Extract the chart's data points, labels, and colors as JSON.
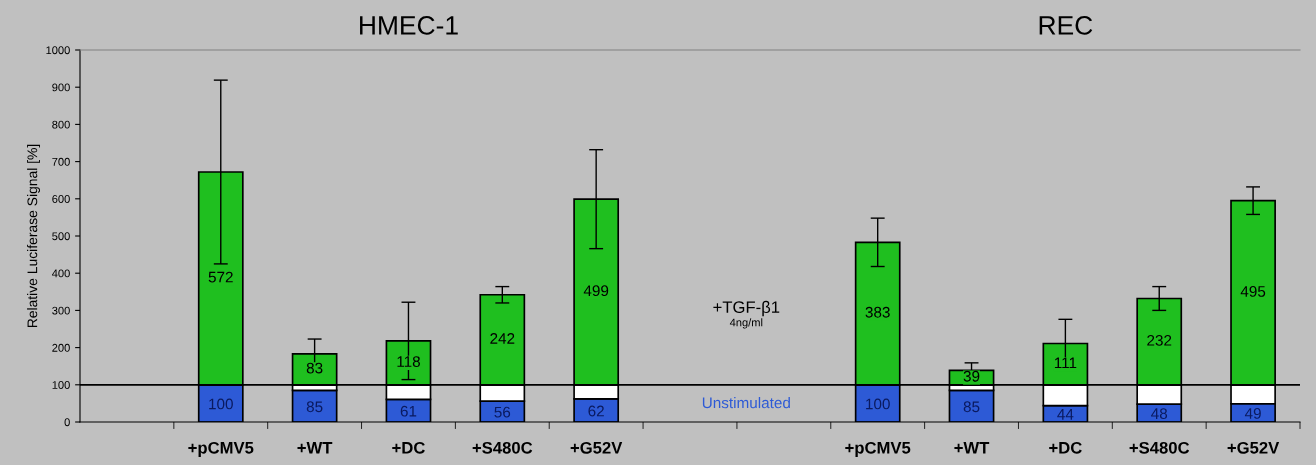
{
  "chart_data": {
    "type": "bar",
    "stacked": true,
    "ylabel": "Relative Luciferase Signal [%]",
    "categories": [
      null,
      "+pCMV5",
      "+WT",
      "+DC",
      "+S480C",
      "+G52V",
      null,
      null,
      "+pCMV5",
      "+WT",
      "+DC",
      "+S480C",
      "+G52V"
    ],
    "series": [
      {
        "name": "Unstimulated",
        "color": "#2d5ad6",
        "values": [
          null,
          100,
          85,
          61,
          56,
          62,
          null,
          null,
          100,
          85,
          44,
          48,
          49
        ],
        "value_labels": [
          null,
          "100",
          "85",
          "61",
          "56",
          "62",
          null,
          null,
          "100",
          "85",
          "44",
          "48",
          "49"
        ]
      },
      {
        "color": "#ffffff",
        "values": [
          null,
          0,
          15,
          39,
          44,
          38,
          null,
          null,
          0,
          15,
          56,
          52,
          51
        ]
      },
      {
        "color": "#1fbf1f",
        "values": [
          null,
          572,
          83,
          118,
          242,
          499,
          null,
          null,
          383,
          39,
          111,
          232,
          495
        ],
        "value_labels": [
          null,
          "572",
          "83",
          "118",
          "242",
          "499",
          null,
          null,
          "383",
          "39",
          "111",
          "232",
          "495"
        ],
        "errors": [
          null,
          247,
          40,
          104,
          22,
          133,
          null,
          null,
          65,
          20,
          65,
          32,
          37
        ]
      }
    ],
    "ylim": [
      0,
      1000
    ],
    "yticks": [
      0,
      100,
      200,
      300,
      400,
      500,
      600,
      700,
      800,
      900,
      1000
    ],
    "ref_lines": [
      {
        "axis": "y",
        "value": 100,
        "color": "#000000"
      }
    ],
    "annotations": [
      "HMEC-1",
      "REC",
      "+TGF-β1",
      "4ng/ml"
    ],
    "grid": false,
    "legend": false
  }
}
